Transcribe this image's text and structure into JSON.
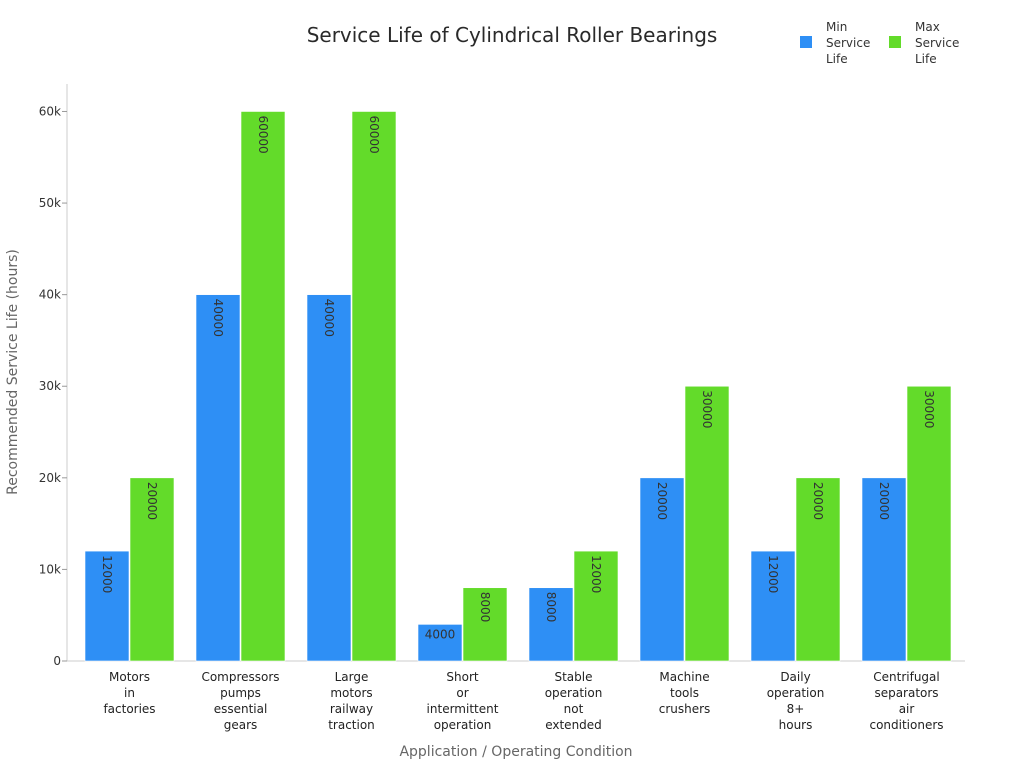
{
  "chart_data": {
    "type": "bar",
    "title": "Service Life of Cylindrical Roller Bearings",
    "xlabel": "Application / Operating Condition",
    "ylabel": "Recommended Service Life (hours)",
    "ylim": [
      0,
      63000
    ],
    "yticks": [
      0,
      10000,
      20000,
      30000,
      40000,
      50000,
      60000
    ],
    "ytick_labels": [
      "0",
      "10k",
      "20k",
      "30k",
      "40k",
      "50k",
      "60k"
    ],
    "legend_position": "top-right",
    "categories": [
      [
        "Motors",
        "in",
        "factories"
      ],
      [
        "Compressors",
        "pumps",
        "essential",
        "gears"
      ],
      [
        "Large",
        "motors",
        "railway",
        "traction"
      ],
      [
        "Short",
        "or",
        "intermittent",
        "operation"
      ],
      [
        "Stable",
        "operation",
        "not",
        "extended"
      ],
      [
        "Machine",
        "tools",
        "crushers"
      ],
      [
        "Daily",
        "operation",
        "8+",
        "hours"
      ],
      [
        "Centrifugal",
        "separators",
        "air",
        "conditioners"
      ]
    ],
    "series": [
      {
        "name": "Min Service Life",
        "legend_lines": [
          "Min",
          "Service",
          "Life"
        ],
        "color": "#2e8ff5",
        "values": [
          12000,
          40000,
          40000,
          4000,
          8000,
          20000,
          12000,
          20000
        ]
      },
      {
        "name": "Max Service Life",
        "legend_lines": [
          "Max",
          "Service",
          "Life"
        ],
        "color": "#63db2a",
        "values": [
          20000,
          60000,
          60000,
          8000,
          12000,
          30000,
          20000,
          30000
        ]
      }
    ]
  }
}
